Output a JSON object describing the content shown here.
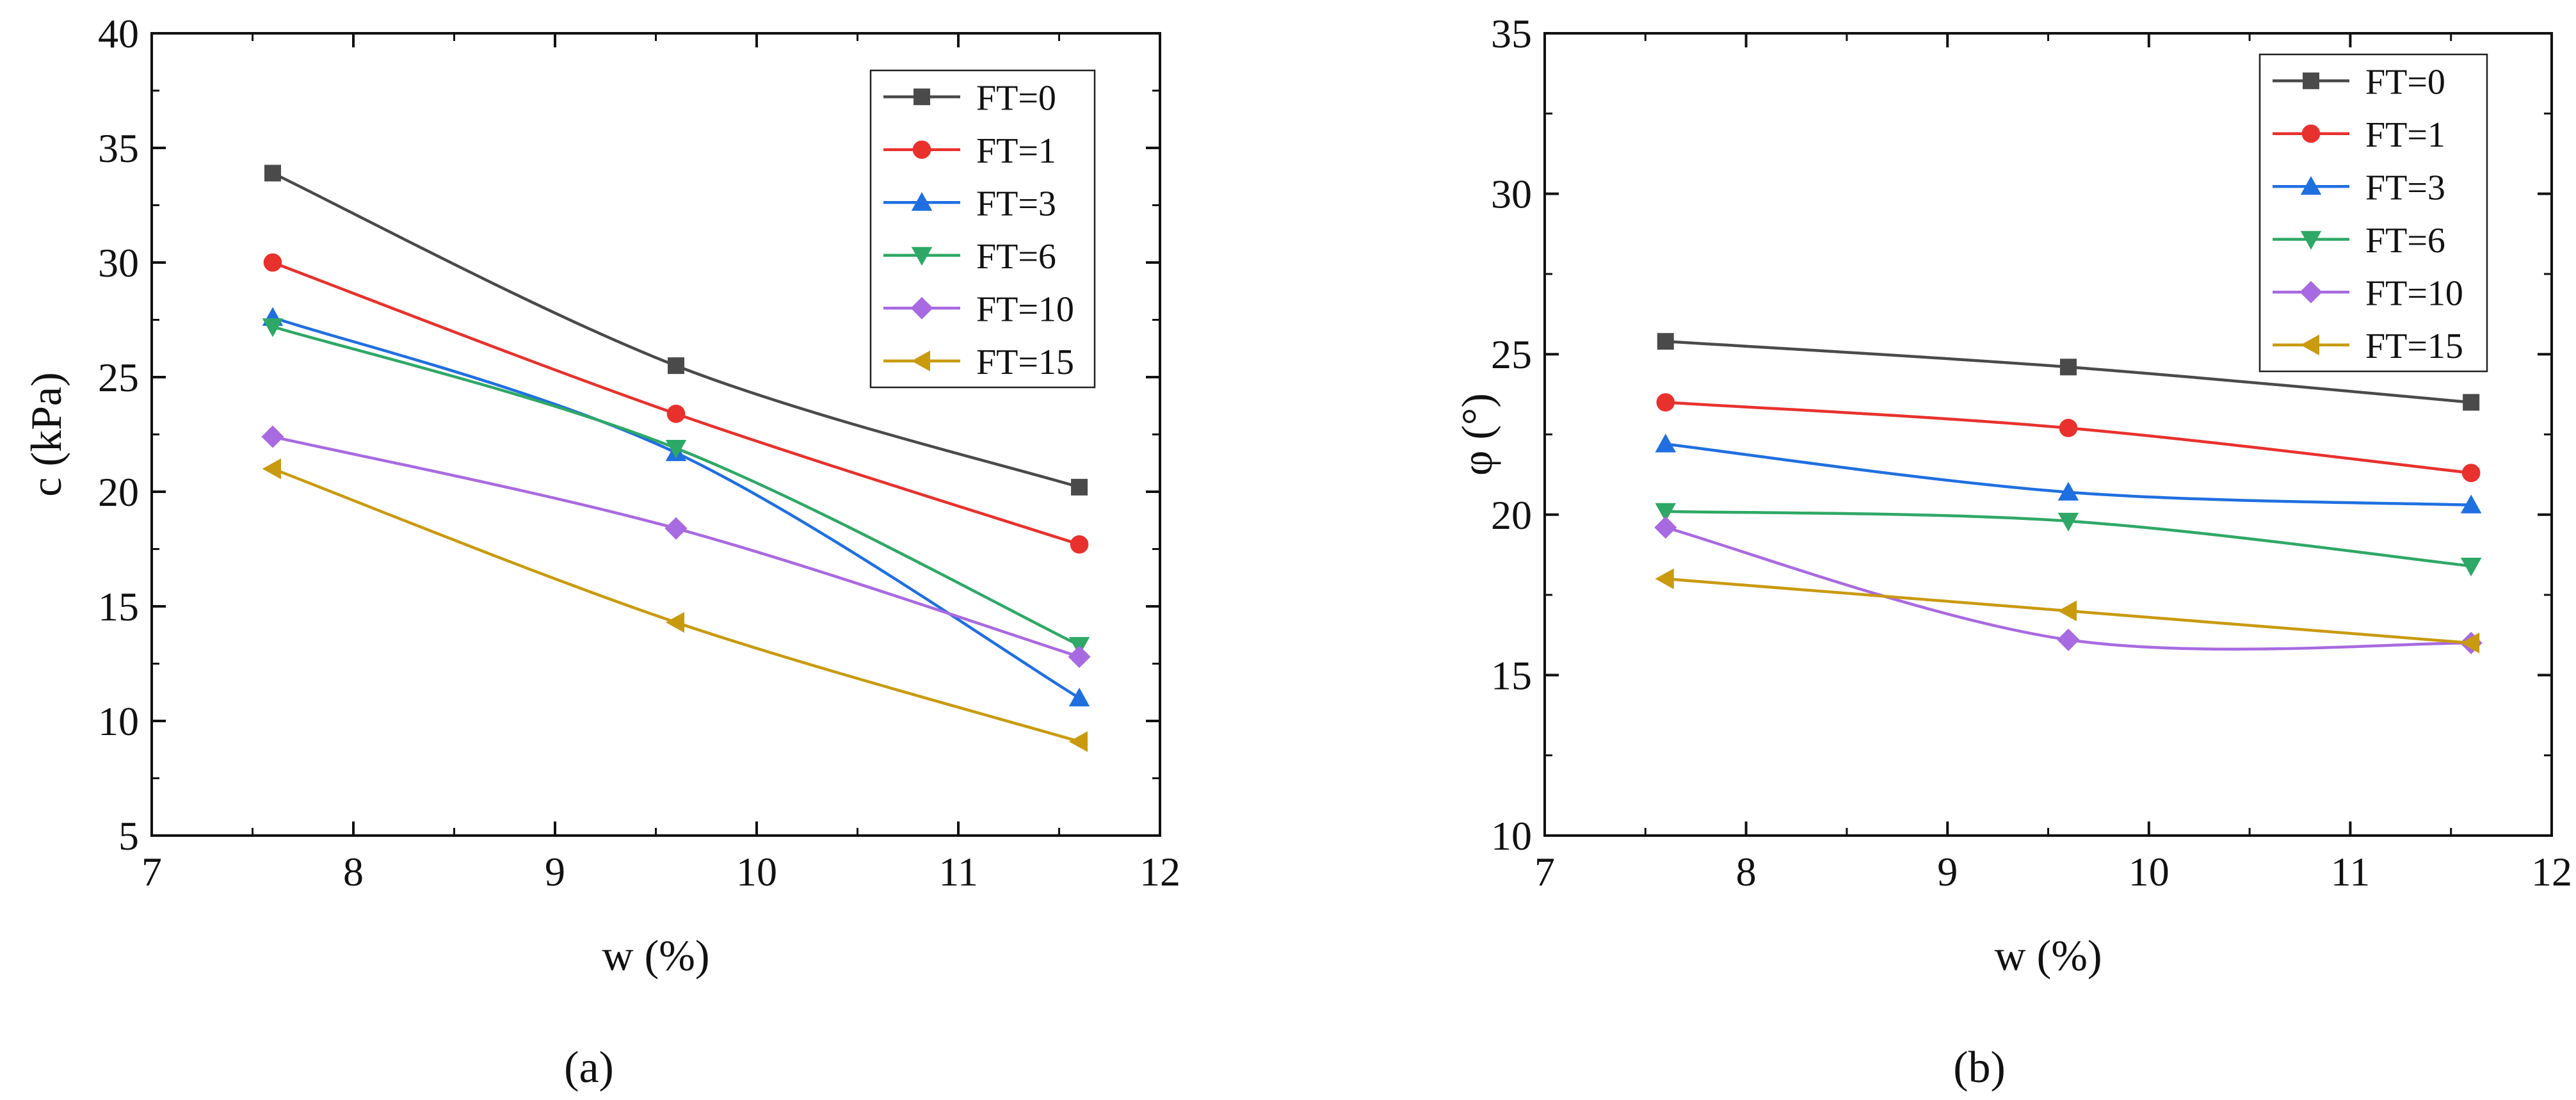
{
  "figure": {
    "panel_labels": [
      "(a)",
      "(b)"
    ]
  },
  "chart_data": [
    {
      "type": "line",
      "panel": "(a)",
      "xlabel": "w (%)",
      "ylabel": "c (kPa)",
      "xlim": [
        7,
        12
      ],
      "ylim": [
        5,
        40
      ],
      "xticks": [
        7,
        8,
        9,
        10,
        11,
        12
      ],
      "yticks": [
        5,
        10,
        15,
        20,
        25,
        30,
        35,
        40
      ],
      "legend_position": "top-right",
      "x": [
        7.6,
        9.6,
        11.6
      ],
      "series": [
        {
          "name": "FT=0",
          "values": [
            33.9,
            25.5,
            20.2
          ],
          "color": "#4a4a4a",
          "marker": "square"
        },
        {
          "name": "FT=1",
          "values": [
            30.0,
            23.4,
            17.7
          ],
          "color": "#e8312d",
          "marker": "circle"
        },
        {
          "name": "FT=3",
          "values": [
            27.6,
            21.7,
            11.0
          ],
          "color": "#1f6fe0",
          "marker": "triangle-up"
        },
        {
          "name": "FT=6",
          "values": [
            27.2,
            21.9,
            13.3
          ],
          "color": "#2ea866",
          "marker": "triangle-down"
        },
        {
          "name": "FT=10",
          "values": [
            22.4,
            18.4,
            12.8
          ],
          "color": "#a86ae0",
          "marker": "diamond"
        },
        {
          "name": "FT=15",
          "values": [
            21.0,
            14.3,
            9.1
          ],
          "color": "#c99a0e",
          "marker": "triangle-left"
        }
      ]
    },
    {
      "type": "line",
      "panel": "(b)",
      "xlabel": "w (%)",
      "ylabel": "φ (°)",
      "xlim": [
        7,
        12
      ],
      "ylim": [
        10,
        35
      ],
      "xticks": [
        7,
        8,
        9,
        10,
        11,
        12
      ],
      "yticks": [
        10,
        15,
        20,
        25,
        30,
        35
      ],
      "legend_position": "top-right",
      "x": [
        7.6,
        9.6,
        11.6
      ],
      "series": [
        {
          "name": "FT=0",
          "values": [
            25.4,
            24.6,
            23.5
          ],
          "color": "#4a4a4a",
          "marker": "square"
        },
        {
          "name": "FT=1",
          "values": [
            23.5,
            22.7,
            21.3
          ],
          "color": "#e8312d",
          "marker": "circle"
        },
        {
          "name": "FT=3",
          "values": [
            22.2,
            20.7,
            20.3
          ],
          "color": "#1f6fe0",
          "marker": "triangle-up"
        },
        {
          "name": "FT=6",
          "values": [
            20.1,
            19.8,
            18.4
          ],
          "color": "#2ea866",
          "marker": "triangle-down"
        },
        {
          "name": "FT=10",
          "values": [
            19.6,
            16.1,
            16.0
          ],
          "color": "#a86ae0",
          "marker": "diamond"
        },
        {
          "name": "FT=15",
          "values": [
            18.0,
            17.0,
            16.0
          ],
          "color": "#c99a0e",
          "marker": "triangle-left"
        }
      ]
    }
  ]
}
